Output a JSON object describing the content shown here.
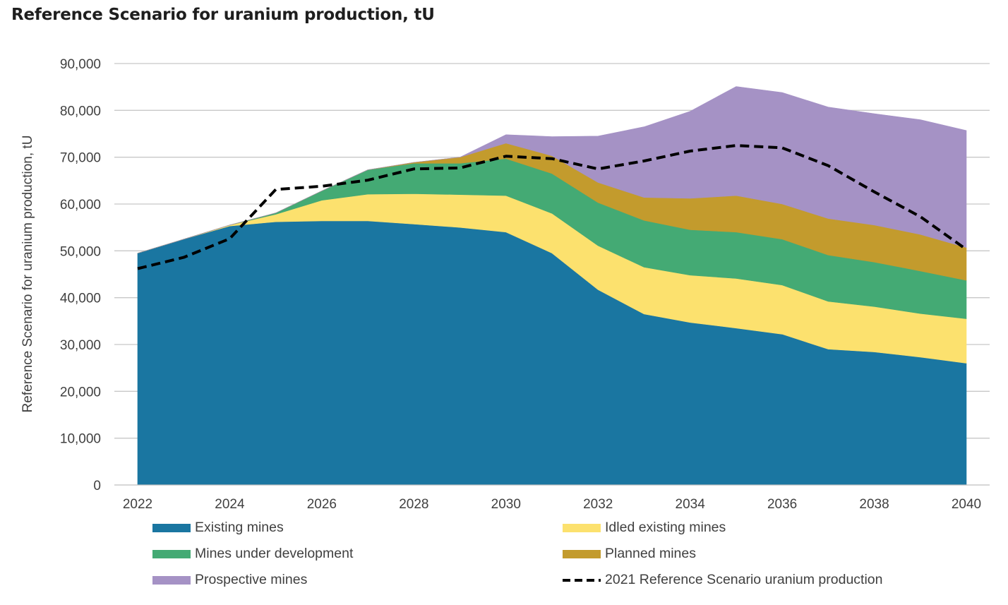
{
  "title": "Reference Scenario for uranium production, tU",
  "chart_data": {
    "type": "area",
    "stacked": true,
    "x": [
      2022,
      2023,
      2024,
      2025,
      2026,
      2027,
      2028,
      2029,
      2030,
      2031,
      2032,
      2033,
      2034,
      2035,
      2036,
      2037,
      2038,
      2039,
      2040
    ],
    "x_tick_labels": [
      "2022",
      "2024",
      "2026",
      "2028",
      "2030",
      "2032",
      "2034",
      "2036",
      "2038",
      "2040"
    ],
    "ylabel": "Reference Scenario for uranium production, tU",
    "ylim": [
      0,
      90000
    ],
    "y_tick_labels": [
      "0",
      "10,000",
      "20,000",
      "30,000",
      "40,000",
      "50,000",
      "60,000",
      "70,000",
      "80,000",
      "90,000"
    ],
    "y_ticks": [
      0,
      10000,
      20000,
      30000,
      40000,
      50000,
      60000,
      70000,
      80000,
      90000
    ],
    "grid": true,
    "legend_position": "bottom",
    "series": [
      {
        "name": "Existing mines",
        "color": "#1a76a1",
        "values": [
          49500,
          52500,
          55300,
          56200,
          56400,
          56400,
          55700,
          55000,
          54000,
          49500,
          41700,
          36500,
          34700,
          33500,
          32200,
          29000,
          28400,
          27300,
          26000
        ]
      },
      {
        "name": "Idled existing mines",
        "color": "#fce16e",
        "values": [
          0,
          0,
          200,
          1600,
          4400,
          5700,
          6500,
          7000,
          7800,
          8500,
          9400,
          10000,
          10100,
          10600,
          10500,
          10200,
          9700,
          9300,
          9500
        ]
      },
      {
        "name": "Mines under development",
        "color": "#44aa74",
        "values": [
          0,
          0,
          0,
          300,
          2000,
          5200,
          6500,
          6700,
          7900,
          8500,
          9200,
          10000,
          9700,
          9900,
          9800,
          9900,
          9500,
          9100,
          8200
        ]
      },
      {
        "name": "Planned mines",
        "color": "#c39b2d",
        "values": [
          0,
          0,
          0,
          0,
          0,
          0,
          200,
          1300,
          3300,
          3800,
          4300,
          4900,
          6700,
          7800,
          7500,
          7800,
          7900,
          7800,
          7000
        ]
      },
      {
        "name": "Prospective mines",
        "color": "#a592c5",
        "values": [
          0,
          0,
          0,
          0,
          0,
          0,
          0,
          0,
          1800,
          4100,
          9900,
          15100,
          18600,
          23300,
          23800,
          23800,
          23800,
          24500,
          25000
        ]
      }
    ],
    "reference_line": {
      "name": "2021 Reference Scenario uranium production",
      "style": "dashed",
      "color": "#000000",
      "values": [
        46200,
        48600,
        52600,
        63100,
        63800,
        65100,
        67500,
        67700,
        70200,
        69700,
        67500,
        69200,
        71300,
        72500,
        72000,
        68200,
        62600,
        57300,
        50300
      ]
    }
  }
}
